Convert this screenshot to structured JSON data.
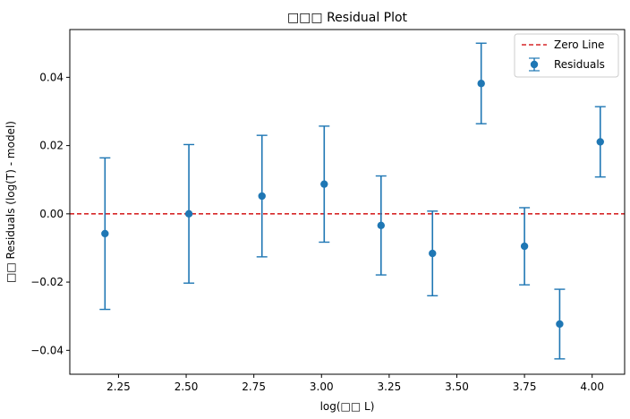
{
  "chart_data": {
    "type": "scatter",
    "title": "□□□ Residual Plot",
    "xlabel": "log(□□ L)",
    "ylabel": "□□ Residuals (log(T) - model)",
    "xlim": [
      2.07,
      4.12
    ],
    "ylim": [
      -0.047,
      0.054
    ],
    "xticks": [
      2.25,
      2.5,
      2.75,
      3.0,
      3.25,
      3.5,
      3.75,
      4.0
    ],
    "xtick_labels": [
      "2.25",
      "2.50",
      "2.75",
      "3.00",
      "3.25",
      "3.50",
      "3.75",
      "4.00"
    ],
    "yticks": [
      -0.04,
      -0.02,
      0.0,
      0.02,
      0.04
    ],
    "ytick_labels": [
      "−0.04",
      "−0.02",
      "0.00",
      "0.02",
      "0.04"
    ],
    "grid": false,
    "legend_position": "top-right",
    "series": [
      {
        "name": "Residuals",
        "color": "#1f77b4",
        "points": [
          {
            "x": 2.2,
            "y": -0.0058,
            "err": 0.0222
          },
          {
            "x": 2.51,
            "y": 0.0,
            "err": 0.0203
          },
          {
            "x": 2.78,
            "y": 0.0052,
            "err": 0.0178
          },
          {
            "x": 3.01,
            "y": 0.0087,
            "err": 0.017
          },
          {
            "x": 3.22,
            "y": -0.0034,
            "err": 0.0145
          },
          {
            "x": 3.41,
            "y": -0.0116,
            "err": 0.0124
          },
          {
            "x": 3.59,
            "y": 0.0382,
            "err": 0.0118
          },
          {
            "x": 3.75,
            "y": -0.0095,
            "err": 0.0113
          },
          {
            "x": 3.88,
            "y": -0.0323,
            "err": 0.0102
          },
          {
            "x": 4.03,
            "y": 0.0211,
            "err": 0.0103
          }
        ]
      }
    ],
    "reference_line": {
      "name": "Zero Line",
      "y": 0,
      "color": "#d62728",
      "style": "dashed"
    }
  }
}
